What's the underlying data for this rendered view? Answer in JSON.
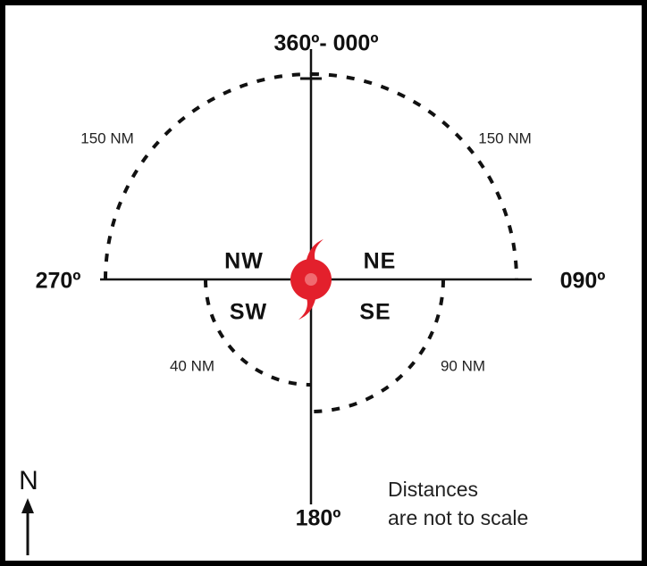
{
  "compass": {
    "north": "360º- 000º",
    "east": "090º",
    "south": "180º",
    "west": "270º"
  },
  "quadrants": {
    "nw": "NW",
    "ne": "NE",
    "sw": "SW",
    "se": "SE"
  },
  "radii": {
    "nw": "150 NM",
    "ne": "150 NM",
    "sw": "40 NM",
    "se": "90 NM"
  },
  "north_arrow": "N",
  "note": [
    "Distances",
    "are not to scale"
  ]
}
